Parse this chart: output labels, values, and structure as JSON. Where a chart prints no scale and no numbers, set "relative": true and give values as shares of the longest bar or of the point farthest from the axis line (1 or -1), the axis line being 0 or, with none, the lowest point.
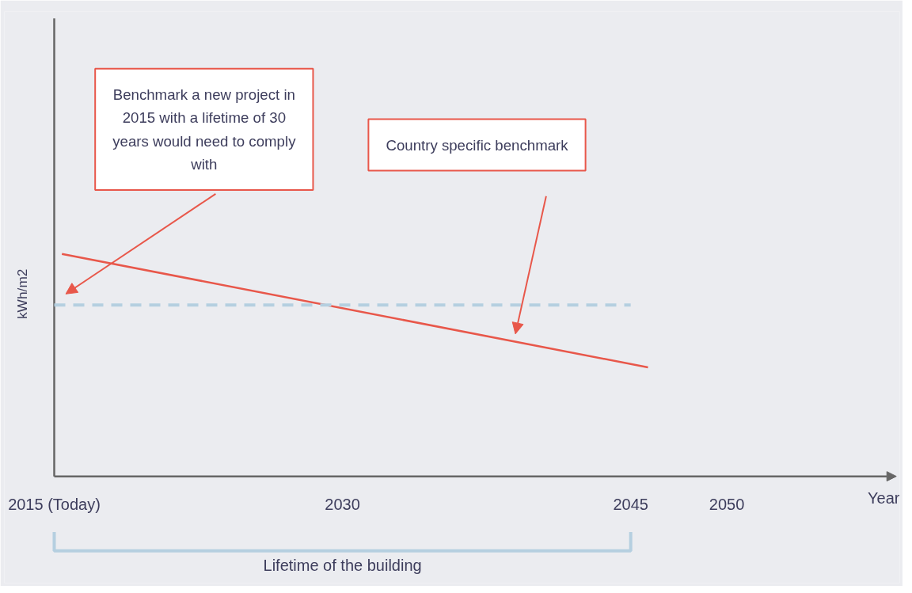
{
  "chart_data": {
    "type": "line",
    "relative": true,
    "xlabel": "Year",
    "ylabel": "kWh/m2",
    "xlim": [
      2015,
      2059
    ],
    "xticks": [
      {
        "value": 2015,
        "label": "2015 (Today)"
      },
      2030,
      2045,
      2050
    ],
    "series": [
      {
        "x": [
          2015.4,
          2045.9
        ],
        "values": [
          1,
          0.49
        ],
        "color": "#e8574a",
        "line_style": "solid"
      },
      {
        "x": [
          2015,
          2045
        ],
        "values": [
          0.77,
          0.77
        ],
        "color": "#b5cfe0",
        "line_style": "dashed"
      }
    ],
    "annotations": [
      "Benchmark a new project in 2015 with a lifetime of 30 years would need to comply with",
      "Country specific benchmark",
      "Lifetime of the building"
    ]
  }
}
